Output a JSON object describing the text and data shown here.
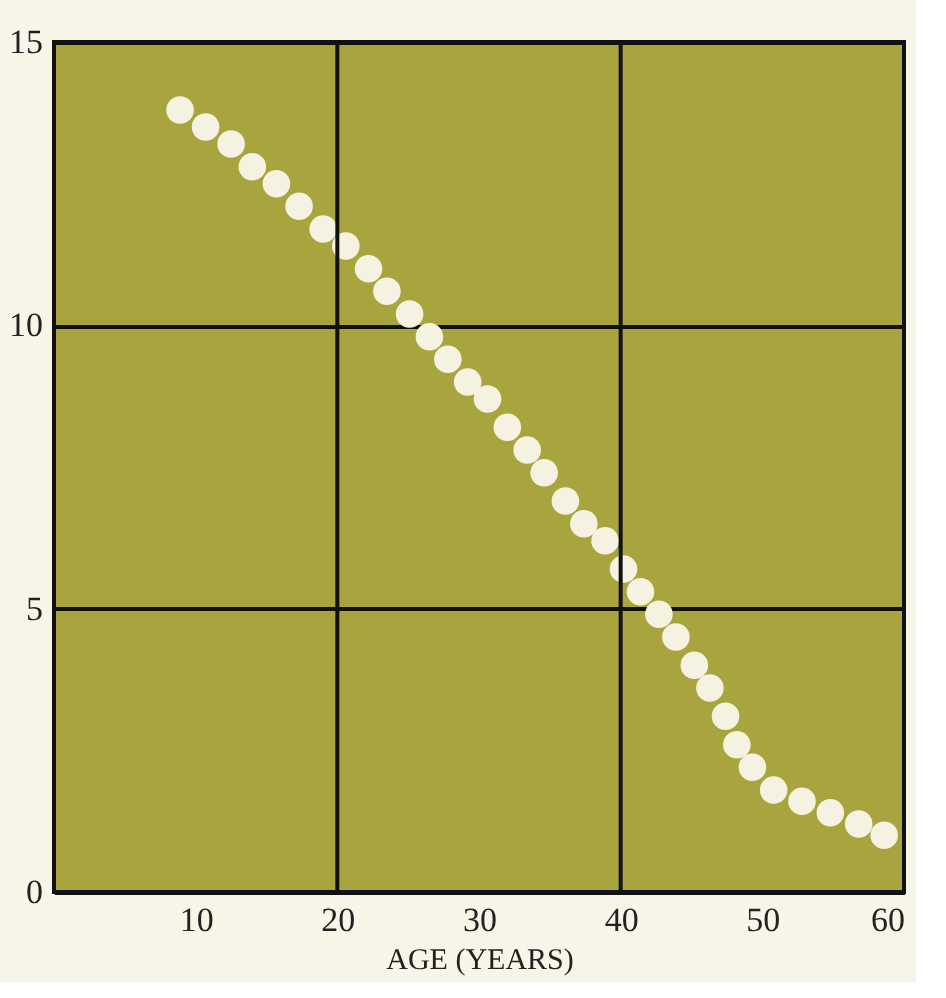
{
  "chart_data": {
    "type": "scatter",
    "xlabel": "AGE (YEARS)",
    "x": [
      8.9,
      10.7,
      12.5,
      14.0,
      15.7,
      17.3,
      19.0,
      20.6,
      22.2,
      23.5,
      25.1,
      26.5,
      27.8,
      29.2,
      30.6,
      32.0,
      33.4,
      34.6,
      36.1,
      37.4,
      38.9,
      40.2,
      41.4,
      42.7,
      43.9,
      45.2,
      46.3,
      47.4,
      48.2,
      49.3,
      50.8,
      52.8,
      54.8,
      56.8,
      58.6
    ],
    "series": [
      {
        "color": "#f6f2e2",
        "values": [
          13.8,
          13.5,
          13.2,
          12.8,
          12.5,
          12.1,
          11.7,
          11.4,
          11.0,
          10.6,
          10.2,
          9.8,
          9.4,
          9.0,
          8.7,
          8.2,
          7.8,
          7.4,
          6.9,
          6.5,
          6.2,
          5.7,
          5.3,
          4.9,
          4.5,
          4.0,
          3.6,
          3.1,
          2.6,
          2.2,
          1.8,
          1.6,
          1.4,
          1.2,
          1.0
        ]
      }
    ],
    "xlim": [
      0,
      60
    ],
    "xticks": [
      10,
      20,
      30,
      40,
      50,
      60
    ],
    "ylim": [
      0,
      15
    ],
    "yticks": [
      0,
      5,
      10,
      15
    ],
    "grid": "y",
    "marker": "circle",
    "ref_lines": [
      {
        "axis": "x",
        "value": 20,
        "label": null
      },
      {
        "axis": "x",
        "value": 40,
        "label": null
      }
    ]
  }
}
